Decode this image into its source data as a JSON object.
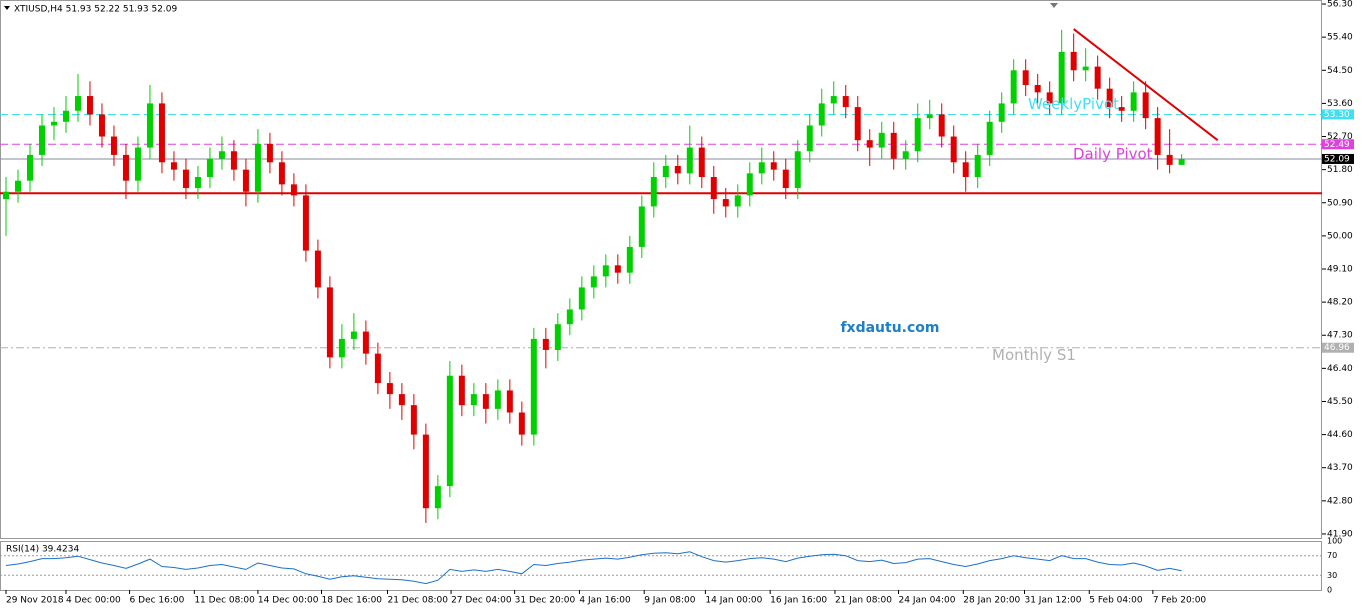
{
  "chart_data": {
    "type": "candlestick",
    "title": "XTIUSD,H4  51.93 52.22 51.93 52.09",
    "watermark": "fxdautu.com",
    "up_color": "#00d000",
    "down_color": "#e00000",
    "xlim": [
      -0.5,
      109.7
    ],
    "ylim": [
      41.79,
      56.41
    ],
    "yticks": [
      {
        "value": 56.3,
        "label": "56.30"
      },
      {
        "value": 55.4,
        "label": "55.40"
      },
      {
        "value": 54.5,
        "label": "54.50"
      },
      {
        "value": 53.6,
        "label": "53.60"
      },
      {
        "value": 52.7,
        "label": "52.70"
      },
      {
        "value": 51.8,
        "label": "51.80"
      },
      {
        "value": 50.9,
        "label": "50.90"
      },
      {
        "value": 50,
        "label": "50.00"
      },
      {
        "value": 49.1,
        "label": "49.10"
      },
      {
        "value": 48.2,
        "label": "48.20"
      },
      {
        "value": 47.3,
        "label": "47.30"
      },
      {
        "value": 46.4,
        "label": "46.40"
      },
      {
        "value": 45.5,
        "label": "45.50"
      },
      {
        "value": 44.6,
        "label": "44.60"
      },
      {
        "value": 43.7,
        "label": "43.70"
      },
      {
        "value": 42.8,
        "label": "42.80"
      },
      {
        "value": 41.9,
        "label": "41.90"
      }
    ],
    "xticks": [
      {
        "value": 0,
        "label": "29 Nov 2018"
      },
      {
        "value": 5,
        "label": "4 Dec 00:00"
      },
      {
        "value": 10.3,
        "label": "6 Dec 16:00"
      },
      {
        "value": 15.7,
        "label": "11 Dec 08:00"
      },
      {
        "value": 21,
        "label": "14 Dec 00:00"
      },
      {
        "value": 26.3,
        "label": "18 Dec 16:00"
      },
      {
        "value": 31.8,
        "label": "21 Dec 08:00"
      },
      {
        "value": 37.1,
        "label": "27 Dec 04:00"
      },
      {
        "value": 42.4,
        "label": "31 Dec 20:00"
      },
      {
        "value": 47.8,
        "label": "4 Jan 16:00"
      },
      {
        "value": 53.2,
        "label": "9 Jan 08:00"
      },
      {
        "value": 58.3,
        "label": "14 Jan 00:00"
      },
      {
        "value": 63.7,
        "label": "16 Jan 16:00"
      },
      {
        "value": 69.1,
        "label": "21 Jan 08:00"
      },
      {
        "value": 74.4,
        "label": "24 Jan 04:00"
      },
      {
        "value": 79.8,
        "label": "28 Jan 20:00"
      },
      {
        "value": 84.9,
        "label": "31 Jan 12:00"
      },
      {
        "value": 90.3,
        "label": "5 Feb 04:00"
      },
      {
        "value": 95.6,
        "label": "7 Feb 20:00"
      }
    ],
    "open": [
      51.0,
      51.2,
      51.5,
      52.2,
      53.0,
      53.1,
      53.4,
      53.8,
      53.3,
      52.7,
      52.2,
      51.5,
      52.4,
      53.6,
      52.0,
      51.8,
      51.3,
      51.6,
      52.1,
      52.3,
      51.8,
      51.2,
      52.5,
      52.0,
      51.4,
      51.1,
      49.6,
      48.6,
      46.7,
      47.2,
      47.4,
      46.8,
      46.0,
      45.7,
      45.4,
      44.6,
      42.6,
      43.2,
      46.2,
      45.4,
      45.7,
      45.3,
      45.8,
      45.2,
      44.6,
      47.2,
      46.9,
      47.6,
      48.0,
      48.6,
      48.9,
      49.2,
      49.0,
      49.7,
      50.8,
      51.6,
      51.9,
      51.7,
      52.4,
      51.6,
      51.0,
      50.8,
      51.1,
      51.7,
      52.0,
      51.8,
      51.3,
      52.3,
      53.0,
      53.6,
      53.8,
      53.5,
      52.6,
      52.4,
      52.8,
      52.1,
      52.3,
      53.2,
      53.3,
      52.7,
      52.0,
      51.6,
      52.2,
      53.1,
      53.6,
      54.5,
      54.1,
      53.9,
      53.6,
      55.0,
      54.5,
      54.6,
      54.0,
      53.5,
      53.4,
      53.9,
      53.2,
      52.2,
      51.93
    ],
    "high": [
      51.6,
      51.8,
      52.5,
      53.3,
      53.5,
      53.8,
      54.4,
      54.2,
      53.6,
      53.0,
      52.5,
      52.7,
      54.1,
      53.9,
      52.3,
      52.1,
      51.9,
      52.4,
      52.7,
      52.6,
      52.1,
      52.9,
      52.8,
      52.3,
      51.7,
      51.4,
      49.9,
      48.9,
      47.6,
      47.9,
      47.7,
      47.1,
      46.3,
      46.0,
      45.7,
      44.9,
      43.5,
      46.6,
      46.5,
      46.0,
      46.0,
      46.1,
      46.1,
      45.5,
      47.5,
      47.5,
      47.9,
      48.3,
      48.9,
      49.2,
      49.5,
      49.5,
      50.0,
      51.1,
      52.0,
      52.2,
      52.2,
      53.0,
      52.7,
      51.9,
      51.3,
      51.4,
      52.0,
      52.4,
      52.3,
      52.1,
      52.6,
      53.3,
      54.0,
      54.2,
      54.1,
      53.8,
      52.9,
      53.1,
      53.1,
      52.6,
      53.6,
      53.7,
      53.6,
      53.0,
      52.3,
      52.5,
      53.4,
      53.9,
      54.8,
      54.8,
      54.4,
      54.2,
      55.6,
      55.5,
      55.1,
      54.9,
      54.3,
      53.8,
      54.2,
      54.2,
      53.5,
      52.9,
      52.22
    ],
    "low": [
      50.0,
      50.9,
      51.2,
      51.9,
      52.6,
      52.8,
      53.1,
      53.0,
      52.4,
      51.9,
      51.0,
      51.2,
      52.1,
      51.7,
      51.5,
      51.0,
      51.0,
      51.3,
      51.8,
      51.5,
      50.8,
      50.9,
      51.7,
      51.1,
      50.8,
      49.3,
      48.3,
      46.4,
      46.4,
      46.9,
      46.5,
      45.7,
      45.3,
      45.0,
      44.2,
      42.2,
      42.3,
      42.9,
      45.1,
      45.1,
      44.9,
      45.0,
      44.9,
      44.3,
      44.3,
      46.4,
      46.6,
      47.3,
      47.7,
      48.3,
      48.6,
      48.7,
      48.7,
      49.4,
      50.5,
      51.3,
      51.4,
      51.4,
      51.3,
      50.6,
      50.5,
      50.5,
      50.8,
      51.4,
      51.5,
      51.0,
      51.0,
      52.0,
      52.7,
      53.3,
      53.2,
      52.3,
      51.9,
      52.1,
      51.8,
      51.8,
      52.0,
      52.9,
      52.4,
      51.7,
      51.2,
      51.3,
      51.9,
      52.8,
      53.3,
      53.8,
      53.6,
      53.3,
      53.3,
      54.2,
      54.2,
      53.7,
      53.2,
      53.1,
      53.1,
      52.9,
      51.8,
      51.7,
      51.93
    ],
    "close": [
      51.2,
      51.5,
      52.2,
      53.0,
      53.1,
      53.4,
      53.8,
      53.3,
      52.7,
      52.2,
      51.5,
      52.4,
      53.6,
      52.0,
      51.8,
      51.3,
      51.6,
      52.1,
      52.3,
      51.8,
      51.2,
      52.5,
      52.0,
      51.4,
      51.1,
      49.6,
      48.6,
      46.7,
      47.2,
      47.4,
      46.8,
      46.0,
      45.7,
      45.4,
      44.6,
      42.6,
      43.2,
      46.2,
      45.4,
      45.7,
      45.3,
      45.8,
      45.2,
      44.6,
      47.2,
      46.9,
      47.6,
      48.0,
      48.6,
      48.9,
      49.2,
      49.0,
      49.7,
      50.8,
      51.6,
      51.9,
      51.7,
      52.4,
      51.6,
      51.0,
      50.8,
      51.1,
      51.7,
      52.0,
      51.8,
      51.3,
      52.3,
      53.0,
      53.6,
      53.8,
      53.5,
      52.6,
      52.4,
      52.8,
      52.1,
      52.3,
      53.2,
      53.3,
      52.7,
      52.0,
      51.6,
      52.2,
      53.1,
      53.6,
      54.5,
      54.1,
      53.9,
      53.6,
      55.0,
      54.5,
      54.6,
      54.0,
      53.5,
      53.4,
      53.9,
      53.2,
      52.2,
      51.93,
      52.09
    ],
    "levels": [
      {
        "name": "WeeklyPivot",
        "value": 53.3,
        "value_label": "53.30",
        "color": "#40e0f0",
        "style": "dash"
      },
      {
        "name": "Daily Pivot",
        "value": 52.49,
        "value_label": "52.49",
        "color": "#e040e0",
        "style": "dash"
      },
      {
        "value": 52.09,
        "value_label": "52.09",
        "color": "#8a8a9a",
        "style": "solid"
      },
      {
        "name": "Monthly S1",
        "value": 46.96,
        "value_label": "46.96",
        "color": "#b0b0b0",
        "style": "dashdot"
      },
      {
        "value": 51.16,
        "color": "#e00000",
        "style": "thick"
      }
    ],
    "trendline": {
      "color": "#e00000",
      "start": [
        89,
        55.62
      ],
      "end": [
        101,
        52.6
      ]
    },
    "rsi": {
      "label": "RSI(14) 39.4234",
      "color": "#1e70c8",
      "ylim": [
        0,
        100
      ],
      "yticks": [
        0,
        30,
        70,
        100
      ],
      "values": [
        50,
        53,
        58,
        64,
        64,
        66,
        69,
        62,
        55,
        50,
        44,
        53,
        63,
        48,
        46,
        42,
        45,
        50,
        52,
        47,
        42,
        55,
        50,
        45,
        43,
        33,
        28,
        22,
        27,
        29,
        26,
        23,
        22,
        21,
        18,
        13,
        20,
        42,
        38,
        41,
        38,
        42,
        38,
        33,
        52,
        50,
        54,
        57,
        61,
        63,
        65,
        63,
        67,
        72,
        75,
        76,
        74,
        78,
        68,
        60,
        57,
        60,
        64,
        66,
        63,
        58,
        65,
        69,
        72,
        73,
        70,
        60,
        58,
        61,
        54,
        56,
        63,
        64,
        58,
        52,
        48,
        53,
        60,
        64,
        70,
        66,
        63,
        60,
        70,
        64,
        64,
        57,
        52,
        51,
        55,
        49,
        40,
        44,
        39.4234
      ]
    }
  }
}
